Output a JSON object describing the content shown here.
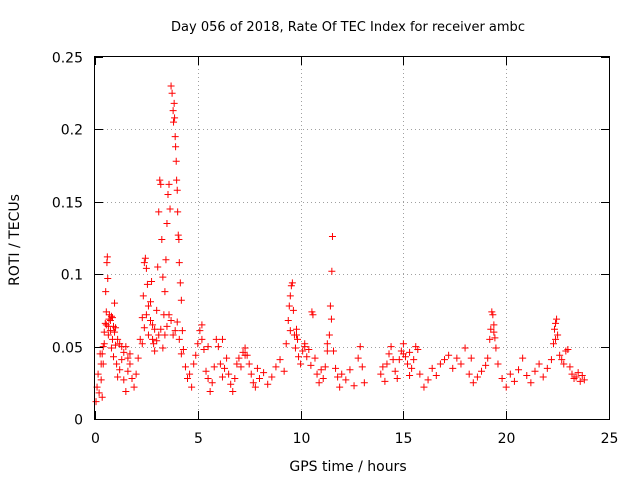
{
  "chart_data": {
    "type": "scatter",
    "title": "Day 056 of 2018, Rate Of TEC Index for receiver ambc",
    "xlabel": "GPS time / hours",
    "ylabel": "ROTI / TECUs",
    "xlim": [
      0,
      25
    ],
    "ylim": [
      0,
      0.25
    ],
    "x_ticks": [
      0,
      5,
      10,
      15,
      20,
      25
    ],
    "y_ticks": [
      0,
      0.05,
      0.1,
      0.15,
      0.2,
      0.25
    ],
    "x_tick_labels": [
      "0",
      "5",
      "10",
      "15",
      "20",
      "25"
    ],
    "y_tick_labels": [
      "0",
      "0.05",
      "0.1",
      "0.15",
      "0.2",
      "0.25"
    ],
    "grid": true,
    "marker": "+",
    "color": "#ff0000",
    "series": [
      {
        "name": "ROTI",
        "points": [
          [
            0.05,
            0.012
          ],
          [
            0.1,
            0.022
          ],
          [
            0.15,
            0.031
          ],
          [
            0.2,
            0.018
          ],
          [
            0.25,
            0.045
          ],
          [
            0.3,
            0.027
          ],
          [
            0.35,
            0.015
          ],
          [
            0.4,
            0.038
          ],
          [
            0.45,
            0.052
          ],
          [
            0.5,
            0.066
          ],
          [
            0.52,
            0.088
          ],
          [
            0.55,
            0.074
          ],
          [
            0.58,
            0.108
          ],
          [
            0.6,
            0.112
          ],
          [
            0.62,
            0.097
          ],
          [
            0.65,
            0.058
          ],
          [
            0.7,
            0.072
          ],
          [
            0.75,
            0.061
          ],
          [
            0.8,
            0.049
          ],
          [
            0.85,
            0.055
          ],
          [
            0.9,
            0.043
          ],
          [
            0.95,
            0.08
          ],
          [
            1.0,
            0.051
          ],
          [
            1.05,
            0.038
          ],
          [
            1.1,
            0.029
          ],
          [
            1.2,
            0.034
          ],
          [
            1.3,
            0.041
          ],
          [
            1.4,
            0.027
          ],
          [
            1.5,
            0.019
          ],
          [
            1.6,
            0.033
          ],
          [
            1.7,
            0.045
          ],
          [
            1.8,
            0.028
          ],
          [
            1.9,
            0.022
          ],
          [
            2.0,
            0.031
          ],
          [
            2.1,
            0.042
          ],
          [
            2.2,
            0.055
          ],
          [
            2.3,
            0.07
          ],
          [
            2.35,
            0.085
          ],
          [
            2.4,
            0.108
          ],
          [
            2.45,
            0.111
          ],
          [
            2.5,
            0.104
          ],
          [
            2.55,
            0.093
          ],
          [
            2.6,
            0.078
          ],
          [
            2.7,
            0.081
          ],
          [
            2.75,
            0.095
          ],
          [
            2.8,
            0.065
          ],
          [
            2.85,
            0.052
          ],
          [
            2.9,
            0.062
          ],
          [
            3.0,
            0.075
          ],
          [
            3.05,
            0.105
          ],
          [
            3.1,
            0.143
          ],
          [
            3.15,
            0.165
          ],
          [
            3.2,
            0.162
          ],
          [
            3.25,
            0.124
          ],
          [
            3.3,
            0.098
          ],
          [
            3.35,
            0.072
          ],
          [
            3.4,
            0.088
          ],
          [
            3.45,
            0.11
          ],
          [
            3.5,
            0.135
          ],
          [
            3.55,
            0.155
          ],
          [
            3.6,
            0.162
          ],
          [
            3.65,
            0.145
          ],
          [
            3.7,
            0.23
          ],
          [
            3.75,
            0.225
          ],
          [
            3.8,
            0.213
          ],
          [
            3.82,
            0.205
          ],
          [
            3.85,
            0.218
          ],
          [
            3.87,
            0.208
          ],
          [
            3.9,
            0.195
          ],
          [
            3.92,
            0.188
          ],
          [
            3.95,
            0.178
          ],
          [
            3.97,
            0.165
          ],
          [
            4.0,
            0.158
          ],
          [
            4.02,
            0.143
          ],
          [
            4.05,
            0.127
          ],
          [
            4.08,
            0.124
          ],
          [
            4.1,
            0.108
          ],
          [
            4.15,
            0.094
          ],
          [
            4.2,
            0.082
          ],
          [
            4.25,
            0.061
          ],
          [
            4.3,
            0.048
          ],
          [
            4.4,
            0.036
          ],
          [
            4.5,
            0.028
          ],
          [
            4.6,
            0.031
          ],
          [
            4.7,
            0.022
          ],
          [
            4.8,
            0.038
          ],
          [
            4.9,
            0.044
          ],
          [
            5.0,
            0.052
          ],
          [
            5.1,
            0.061
          ],
          [
            5.2,
            0.065
          ],
          [
            5.3,
            0.048
          ],
          [
            5.4,
            0.033
          ],
          [
            5.5,
            0.028
          ],
          [
            5.6,
            0.019
          ],
          [
            5.7,
            0.025
          ],
          [
            5.8,
            0.036
          ],
          [
            5.9,
            0.055
          ],
          [
            6.0,
            0.05
          ],
          [
            6.1,
            0.038
          ],
          [
            6.2,
            0.029
          ],
          [
            6.3,
            0.035
          ],
          [
            6.4,
            0.042
          ],
          [
            6.5,
            0.031
          ],
          [
            6.6,
            0.024
          ],
          [
            6.7,
            0.019
          ],
          [
            6.8,
            0.028
          ],
          [
            6.9,
            0.038
          ],
          [
            7.0,
            0.042
          ],
          [
            7.1,
            0.036
          ],
          [
            7.2,
            0.046
          ],
          [
            7.3,
            0.049
          ],
          [
            7.4,
            0.044
          ],
          [
            7.5,
            0.038
          ],
          [
            7.6,
            0.031
          ],
          [
            7.7,
            0.025
          ],
          [
            7.8,
            0.022
          ],
          [
            7.9,
            0.035
          ],
          [
            8.0,
            0.028
          ],
          [
            8.2,
            0.032
          ],
          [
            8.4,
            0.024
          ],
          [
            8.6,
            0.029
          ],
          [
            8.8,
            0.036
          ],
          [
            9.0,
            0.041
          ],
          [
            9.2,
            0.033
          ],
          [
            9.3,
            0.052
          ],
          [
            9.4,
            0.068
          ],
          [
            9.45,
            0.078
          ],
          [
            9.5,
            0.085
          ],
          [
            9.55,
            0.092
          ],
          [
            9.6,
            0.094
          ],
          [
            9.65,
            0.075
          ],
          [
            9.7,
            0.058
          ],
          [
            9.75,
            0.049
          ],
          [
            9.8,
            0.062
          ],
          [
            9.85,
            0.055
          ],
          [
            9.9,
            0.043
          ],
          [
            10.0,
            0.038
          ],
          [
            10.1,
            0.047
          ],
          [
            10.2,
            0.052
          ],
          [
            10.3,
            0.043
          ],
          [
            10.4,
            0.048
          ],
          [
            10.5,
            0.037
          ],
          [
            10.55,
            0.074
          ],
          [
            10.6,
            0.072
          ],
          [
            10.7,
            0.042
          ],
          [
            10.8,
            0.031
          ],
          [
            10.9,
            0.025
          ],
          [
            11.0,
            0.034
          ],
          [
            11.1,
            0.028
          ],
          [
            11.2,
            0.036
          ],
          [
            11.3,
            0.047
          ],
          [
            11.4,
            0.058
          ],
          [
            11.45,
            0.078
          ],
          [
            11.5,
            0.069
          ],
          [
            11.52,
            0.102
          ],
          [
            11.55,
            0.126
          ],
          [
            11.6,
            0.047
          ],
          [
            11.7,
            0.035
          ],
          [
            11.8,
            0.029
          ],
          [
            11.9,
            0.022
          ],
          [
            12.0,
            0.031
          ],
          [
            12.2,
            0.027
          ],
          [
            12.4,
            0.034
          ],
          [
            12.6,
            0.023
          ],
          [
            12.8,
            0.042
          ],
          [
            12.9,
            0.05
          ],
          [
            13.0,
            0.036
          ],
          [
            13.1,
            0.025
          ],
          [
            13.9,
            0.031
          ],
          [
            14.0,
            0.036
          ],
          [
            14.1,
            0.026
          ],
          [
            14.2,
            0.038
          ],
          [
            14.3,
            0.045
          ],
          [
            14.4,
            0.05
          ],
          [
            14.5,
            0.041
          ],
          [
            14.6,
            0.033
          ],
          [
            14.7,
            0.028
          ],
          [
            14.8,
            0.041
          ],
          [
            14.9,
            0.047
          ],
          [
            15.0,
            0.052
          ],
          [
            15.1,
            0.043
          ],
          [
            15.2,
            0.038
          ],
          [
            15.3,
            0.03
          ],
          [
            15.4,
            0.035
          ],
          [
            15.5,
            0.041
          ],
          [
            15.6,
            0.05
          ],
          [
            15.7,
            0.048
          ],
          [
            15.8,
            0.031
          ],
          [
            16.0,
            0.022
          ],
          [
            16.2,
            0.027
          ],
          [
            16.4,
            0.035
          ],
          [
            16.6,
            0.03
          ],
          [
            16.8,
            0.038
          ],
          [
            17.0,
            0.041
          ],
          [
            17.2,
            0.044
          ],
          [
            17.4,
            0.035
          ],
          [
            17.6,
            0.042
          ],
          [
            17.8,
            0.038
          ],
          [
            18.0,
            0.049
          ],
          [
            18.2,
            0.031
          ],
          [
            18.4,
            0.025
          ],
          [
            18.6,
            0.029
          ],
          [
            18.8,
            0.033
          ],
          [
            19.0,
            0.037
          ],
          [
            19.1,
            0.042
          ],
          [
            19.2,
            0.055
          ],
          [
            19.25,
            0.062
          ],
          [
            19.3,
            0.074
          ],
          [
            19.35,
            0.072
          ],
          [
            19.4,
            0.065
          ],
          [
            19.45,
            0.056
          ],
          [
            19.5,
            0.049
          ],
          [
            19.6,
            0.038
          ],
          [
            19.8,
            0.028
          ],
          [
            20.0,
            0.022
          ],
          [
            20.2,
            0.031
          ],
          [
            20.4,
            0.026
          ],
          [
            20.6,
            0.034
          ],
          [
            20.8,
            0.042
          ],
          [
            21.0,
            0.03
          ],
          [
            21.2,
            0.025
          ],
          [
            21.4,
            0.033
          ],
          [
            21.6,
            0.038
          ],
          [
            21.8,
            0.029
          ],
          [
            22.0,
            0.035
          ],
          [
            22.2,
            0.041
          ],
          [
            22.3,
            0.052
          ],
          [
            22.35,
            0.062
          ],
          [
            22.4,
            0.066
          ],
          [
            22.45,
            0.069
          ],
          [
            22.5,
            0.058
          ],
          [
            22.6,
            0.044
          ],
          [
            22.7,
            0.041
          ],
          [
            22.8,
            0.038
          ],
          [
            22.9,
            0.047
          ],
          [
            23.0,
            0.048
          ],
          [
            23.1,
            0.036
          ],
          [
            23.2,
            0.031
          ],
          [
            23.3,
            0.028
          ],
          [
            23.4,
            0.029
          ],
          [
            23.5,
            0.032
          ],
          [
            23.6,
            0.026
          ],
          [
            23.7,
            0.03
          ],
          [
            23.8,
            0.027
          ],
          [
            0.3,
            0.038
          ],
          [
            0.35,
            0.045
          ],
          [
            0.4,
            0.05
          ],
          [
            0.45,
            0.06
          ],
          [
            0.55,
            0.065
          ],
          [
            0.65,
            0.064
          ],
          [
            0.68,
            0.069
          ],
          [
            0.75,
            0.068
          ],
          [
            0.8,
            0.071
          ],
          [
            0.85,
            0.07
          ],
          [
            0.9,
            0.064
          ],
          [
            0.95,
            0.06
          ],
          [
            1.0,
            0.063
          ],
          [
            1.1,
            0.055
          ],
          [
            1.2,
            0.052
          ],
          [
            1.3,
            0.05
          ],
          [
            1.4,
            0.046
          ],
          [
            1.5,
            0.05
          ],
          [
            1.6,
            0.042
          ],
          [
            1.7,
            0.038
          ],
          [
            2.3,
            0.052
          ],
          [
            2.4,
            0.063
          ],
          [
            2.5,
            0.072
          ],
          [
            2.6,
            0.058
          ],
          [
            2.7,
            0.068
          ],
          [
            2.8,
            0.055
          ],
          [
            2.9,
            0.047
          ],
          [
            3.0,
            0.054
          ],
          [
            3.1,
            0.058
          ],
          [
            3.2,
            0.062
          ],
          [
            3.3,
            0.049
          ],
          [
            3.4,
            0.058
          ],
          [
            3.5,
            0.064
          ],
          [
            3.6,
            0.072
          ],
          [
            3.7,
            0.068
          ],
          [
            3.8,
            0.058
          ],
          [
            3.9,
            0.061
          ],
          [
            4.0,
            0.067
          ],
          [
            4.1,
            0.055
          ],
          [
            4.2,
            0.045
          ],
          [
            5.2,
            0.055
          ],
          [
            5.5,
            0.05
          ],
          [
            6.2,
            0.055
          ],
          [
            7.3,
            0.044
          ],
          [
            9.5,
            0.061
          ],
          [
            9.8,
            0.058
          ],
          [
            10.2,
            0.05
          ],
          [
            11.3,
            0.052
          ],
          [
            15.0,
            0.045
          ],
          [
            15.3,
            0.046
          ],
          [
            18.3,
            0.042
          ],
          [
            19.4,
            0.06
          ],
          [
            22.4,
            0.055
          ]
        ]
      }
    ]
  }
}
